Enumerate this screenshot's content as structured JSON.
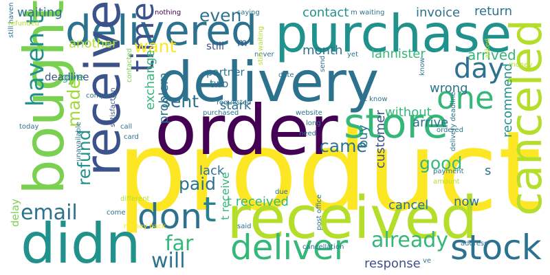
{
  "words": [
    {
      "text": "product",
      "color": "#fde725"
    },
    {
      "text": "order",
      "color": "#440154"
    },
    {
      "text": "delivery",
      "color": "#2c728e"
    },
    {
      "text": "purchase",
      "color": "#21918c"
    },
    {
      "text": "delivered",
      "color": "#2c728e"
    },
    {
      "text": "received",
      "color": "#b5de2b"
    },
    {
      "text": "didn",
      "color": "#21918c"
    },
    {
      "text": "bought",
      "color": "#7ad151"
    },
    {
      "text": "receive",
      "color": "#3b528b"
    },
    {
      "text": "canceled",
      "color": "#b5de2b"
    },
    {
      "text": "store",
      "color": "#35b779"
    },
    {
      "text": "don",
      "color": "#2c728e"
    },
    {
      "text": "t",
      "color": "#26828e"
    },
    {
      "text": "stock",
      "color": "#2c728e"
    },
    {
      "text": "deliver",
      "color": "#35b779"
    },
    {
      "text": "one",
      "color": "#35b779"
    },
    {
      "text": "time",
      "color": "#3b528b"
    },
    {
      "text": "day",
      "color": "#2c728e"
    },
    {
      "text": "haven t",
      "color": "#21918c"
    },
    {
      "text": "email",
      "color": "#2c728e"
    },
    {
      "text": "far",
      "color": "#35b779"
    },
    {
      "text": "will",
      "color": "#2c728e"
    },
    {
      "text": "already",
      "color": "#35b779"
    },
    {
      "text": "paid",
      "color": "#2c728e"
    },
    {
      "text": "good",
      "color": "#35b779"
    },
    {
      "text": "made",
      "color": "#a0da39"
    },
    {
      "text": "refund",
      "color": "#21918c"
    },
    {
      "text": "came",
      "color": "#2c728e"
    },
    {
      "text": "sent",
      "color": "#2c728e"
    },
    {
      "text": "want",
      "color": "#fde725"
    },
    {
      "text": "even",
      "color": "#2c728e"
    },
    {
      "text": "waiting",
      "color": "#2c728e"
    },
    {
      "text": "contact",
      "color": "#21918c"
    },
    {
      "text": "invoice",
      "color": "#2c728e"
    },
    {
      "text": "return",
      "color": "#2c728e"
    },
    {
      "text": "arrived",
      "color": "#35b779"
    },
    {
      "text": "lannister",
      "color": "#35b779"
    },
    {
      "text": "month",
      "color": "#2c728e"
    },
    {
      "text": "another",
      "color": "#b5de2b"
    },
    {
      "text": "stark",
      "color": "#2c728e"
    },
    {
      "text": "cancel",
      "color": "#2c728e"
    },
    {
      "text": "t received",
      "color": "#35b779"
    },
    {
      "text": "customer",
      "color": "#3b528b"
    },
    {
      "text": "buy",
      "color": "#2c728e"
    },
    {
      "text": "s",
      "color": "#2c728e"
    },
    {
      "text": "recommend",
      "color": "#21918c"
    },
    {
      "text": "now",
      "color": "#2c728e"
    },
    {
      "text": "problem",
      "color": "#2c728e"
    },
    {
      "text": "exchange",
      "color": "#35b779"
    },
    {
      "text": "lack",
      "color": "#2c728e"
    },
    {
      "text": "without",
      "color": "#35b779"
    },
    {
      "text": "arrive",
      "color": "#2c728e"
    },
    {
      "text": "wrong",
      "color": "#2c728e"
    },
    {
      "text": "response",
      "color": "#3b528b"
    },
    {
      "text": "t receive",
      "color": "#35b779"
    },
    {
      "text": "delay",
      "color": "#7ad151"
    },
    {
      "text": "still",
      "color": "#3b528b"
    },
    {
      "text": "m",
      "color": "#3b528b"
    },
    {
      "text": "deadline",
      "color": "#3b528b"
    },
    {
      "text": "give",
      "color": "#35b779"
    },
    {
      "text": "two",
      "color": "#2c728e"
    },
    {
      "text": "partner",
      "color": "#2c728e"
    },
    {
      "text": "nothing",
      "color": "#440154"
    },
    {
      "text": "saying",
      "color": "#2c728e"
    },
    {
      "text": "m waiting",
      "color": "#2c728e"
    },
    {
      "text": "never",
      "color": "#2c728e"
    },
    {
      "text": "yet",
      "color": "#2c728e"
    },
    {
      "text": "asked",
      "color": "#b5de2b"
    },
    {
      "text": "money",
      "color": "#b5de2b"
    },
    {
      "text": "know",
      "color": "#2c728e"
    },
    {
      "text": "t know",
      "color": "#2c728e"
    },
    {
      "text": "send",
      "color": "#2c728e"
    },
    {
      "text": "date",
      "color": "#2c728e"
    },
    {
      "text": "website",
      "color": "#2c728e"
    },
    {
      "text": "purchased",
      "color": "#2c728e"
    },
    {
      "text": "requested",
      "color": "#2c728e"
    },
    {
      "text": "company",
      "color": "#2c728e"
    },
    {
      "text": "contacted",
      "color": "#7ad151"
    },
    {
      "text": "still waiting",
      "color": "#b5de2b"
    },
    {
      "text": "still haven",
      "color": "#2c728e"
    },
    {
      "text": "refunded",
      "color": "#b5de2b"
    },
    {
      "text": "today",
      "color": "#2c728e"
    },
    {
      "text": "satisfaction",
      "color": "#3b528b"
    },
    {
      "text": "call",
      "color": "#2c728e"
    },
    {
      "text": "card",
      "color": "#2c728e"
    },
    {
      "text": "unavailable",
      "color": "#2c728e"
    },
    {
      "text": "long",
      "color": "#2c728e"
    },
    {
      "text": "need",
      "color": "#2c728e"
    },
    {
      "text": "ordered",
      "color": "#2c728e"
    },
    {
      "text": "payment",
      "color": "#2c728e"
    },
    {
      "text": "amount",
      "color": "#b5de2b"
    },
    {
      "text": "delivery deadline",
      "color": "#2c728e"
    },
    {
      "text": "different",
      "color": "#b5de2b"
    },
    {
      "text": "due",
      "color": "#2c728e"
    },
    {
      "text": "come",
      "color": "#2c728e"
    },
    {
      "text": "money back",
      "color": "#fde725"
    },
    {
      "text": "said",
      "color": "#2c728e"
    },
    {
      "text": "post office",
      "color": "#2c728e"
    },
    {
      "text": "cancellation",
      "color": "#2c728e"
    },
    {
      "text": "address",
      "color": "#2c728e"
    },
    {
      "text": "ve",
      "color": "#2c728e"
    }
  ]
}
